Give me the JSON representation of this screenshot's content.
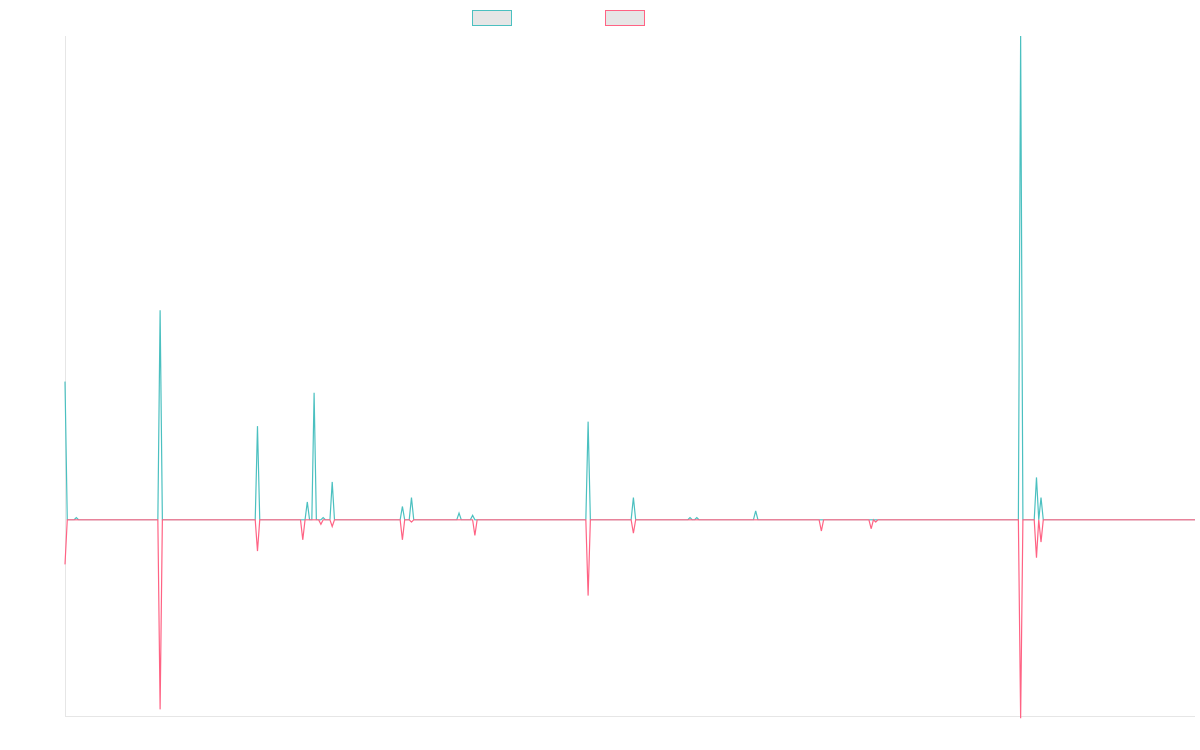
{
  "chart_data": {
    "type": "line",
    "title": "",
    "xlabel": "",
    "ylabel": "",
    "grid": false,
    "legend_position": "top-center",
    "x": [
      0,
      1,
      2,
      3,
      4,
      5,
      6,
      7,
      8,
      9,
      10,
      11,
      12,
      13,
      14,
      15,
      16,
      17,
      18,
      19,
      20,
      21,
      22,
      23,
      24,
      25,
      26,
      27,
      28,
      29,
      30,
      31,
      32,
      33,
      34,
      35,
      36,
      37,
      38,
      39,
      40,
      41,
      42,
      43,
      44,
      45,
      46,
      47,
      48,
      49,
      50,
      51,
      52,
      53,
      54,
      55,
      56,
      57,
      58,
      59,
      60,
      61,
      62,
      63,
      64,
      65,
      66,
      67,
      68,
      69,
      70,
      71,
      72,
      73,
      74,
      75,
      76,
      77,
      78,
      79,
      80,
      81,
      82,
      83,
      84,
      85,
      86,
      87,
      88,
      89,
      90,
      91,
      92,
      93,
      94,
      95,
      96,
      97,
      98,
      99,
      100,
      101,
      102,
      103,
      104,
      105,
      106,
      107,
      108,
      109,
      110,
      111,
      112,
      113,
      114,
      115,
      116,
      117,
      118,
      119,
      120,
      121,
      122,
      123,
      124,
      125,
      126,
      127,
      128,
      129,
      130,
      131,
      132,
      133,
      134,
      135,
      136,
      137,
      138,
      139,
      140,
      141,
      142,
      143,
      144,
      145,
      146,
      147,
      148,
      149,
      150,
      151,
      152,
      153,
      154,
      155,
      156,
      157,
      158,
      159,
      160,
      161,
      162,
      163,
      164,
      165,
      166,
      167,
      168,
      169,
      170,
      171,
      172,
      173,
      174,
      175,
      176,
      177,
      178,
      179,
      180,
      181,
      182,
      183,
      184,
      185,
      186,
      187,
      188,
      189,
      190,
      191,
      192,
      193,
      194,
      195,
      196,
      197,
      198,
      199,
      200,
      201,
      202,
      203,
      204,
      205,
      206,
      207,
      208,
      209,
      210,
      211,
      212,
      213,
      214,
      215,
      216,
      217,
      218,
      219,
      220,
      221,
      222,
      223,
      224,
      225,
      226,
      227,
      228,
      229,
      230,
      231,
      232,
      233,
      234,
      235,
      236,
      237,
      238,
      239,
      240,
      241,
      242,
      243,
      244,
      245,
      246,
      247,
      248,
      249,
      250,
      251,
      252,
      253,
      254,
      255,
      256,
      257,
      258,
      259,
      260,
      261,
      262,
      263,
      264,
      265,
      266,
      267,
      268,
      269,
      270,
      271,
      272,
      273,
      274,
      275,
      276,
      277,
      278,
      279,
      280,
      281,
      282,
      283,
      284,
      285,
      286,
      287,
      288,
      289,
      290,
      291,
      292,
      293,
      294,
      295,
      296,
      297,
      298,
      299,
      300,
      301,
      302,
      303,
      304,
      305,
      306,
      307,
      308,
      309,
      310,
      311,
      312,
      313,
      314,
      315,
      316,
      317,
      318,
      319,
      320,
      321,
      322,
      323,
      324,
      325,
      326,
      327,
      328,
      329,
      330,
      331,
      332,
      333,
      334,
      335,
      336,
      337,
      338,
      339,
      340,
      341,
      342,
      343,
      344,
      345,
      346,
      347,
      348,
      349,
      350,
      351,
      352,
      353,
      354,
      355,
      356,
      357,
      358,
      359,
      360,
      361,
      362,
      363,
      364,
      365,
      366,
      367,
      368,
      369,
      370,
      371,
      372,
      373,
      374,
      375,
      376,
      377,
      378,
      379,
      380,
      381,
      382,
      383,
      384,
      385,
      386,
      387,
      388,
      389,
      390,
      391,
      392,
      393,
      394,
      395,
      396,
      397,
      398,
      399,
      400,
      401,
      402,
      403,
      404,
      405,
      406,
      407,
      408,
      409,
      410,
      411,
      412,
      413,
      414,
      415,
      416,
      417,
      418,
      419,
      420,
      421,
      422,
      423,
      424,
      425,
      426,
      427,
      428,
      429,
      430,
      431,
      432,
      433,
      434,
      435,
      436,
      437,
      438,
      439,
      440,
      441,
      442,
      443,
      444,
      445,
      446,
      447,
      448,
      449,
      450,
      451,
      452,
      453,
      454,
      455,
      456,
      457,
      458,
      459,
      460,
      461,
      462,
      463,
      464,
      465,
      466,
      467,
      468,
      469,
      470,
      471,
      472,
      473,
      474,
      475,
      476,
      477,
      478,
      479,
      480,
      481,
      482,
      483,
      484,
      485,
      486,
      487,
      488,
      489,
      490,
      491,
      492,
      493,
      494,
      495,
      496,
      497,
      498,
      499
    ],
    "ylim": [
      -0.88,
      2.17
    ],
    "xlim": [
      0,
      499
    ],
    "series": [
      {
        "color": "#4bc0c0",
        "sparse": [
          [
            0,
            0.62
          ],
          [
            5,
            0.01
          ],
          [
            23,
            0.0
          ],
          [
            42,
            0.94
          ],
          [
            85,
            0.42
          ],
          [
            107,
            0.08
          ],
          [
            110,
            0.57
          ],
          [
            114,
            0.01
          ],
          [
            118,
            0.17
          ],
          [
            134,
            0.0
          ],
          [
            149,
            0.06
          ],
          [
            153,
            0.1
          ],
          [
            160,
            0.0
          ],
          [
            174,
            0.03
          ],
          [
            180,
            0.02
          ],
          [
            205,
            0.0
          ],
          [
            231,
            0.44
          ],
          [
            251,
            0.1
          ],
          [
            276,
            0.01
          ],
          [
            279,
            0.01
          ],
          [
            305,
            0.04
          ],
          [
            341,
            0.0
          ],
          [
            420,
            0.0
          ],
          [
            422,
            2.17
          ],
          [
            427,
            0.0
          ],
          [
            429,
            0.19
          ],
          [
            431,
            0.1
          ],
          [
            433,
            0.0
          ]
        ]
      },
      {
        "color": "#ff6384",
        "sparse": [
          [
            0,
            -0.2
          ],
          [
            42,
            -0.85
          ],
          [
            85,
            -0.14
          ],
          [
            105,
            -0.09
          ],
          [
            113,
            -0.02
          ],
          [
            118,
            -0.03
          ],
          [
            149,
            -0.09
          ],
          [
            153,
            -0.01
          ],
          [
            160,
            -0.0
          ],
          [
            181,
            -0.07
          ],
          [
            231,
            -0.34
          ],
          [
            251,
            -0.06
          ],
          [
            334,
            -0.05
          ],
          [
            356,
            -0.04
          ],
          [
            358,
            -0.01
          ],
          [
            422,
            -0.89
          ],
          [
            429,
            -0.17
          ],
          [
            431,
            -0.1
          ],
          [
            434,
            0.0
          ]
        ]
      }
    ]
  },
  "legend": {
    "swatch_fill": "#e6e6e6",
    "entries": [
      {
        "color": "#4bc0c0"
      },
      {
        "color": "#ff6384"
      }
    ]
  },
  "axes": {
    "color": "#e6e6e6"
  }
}
